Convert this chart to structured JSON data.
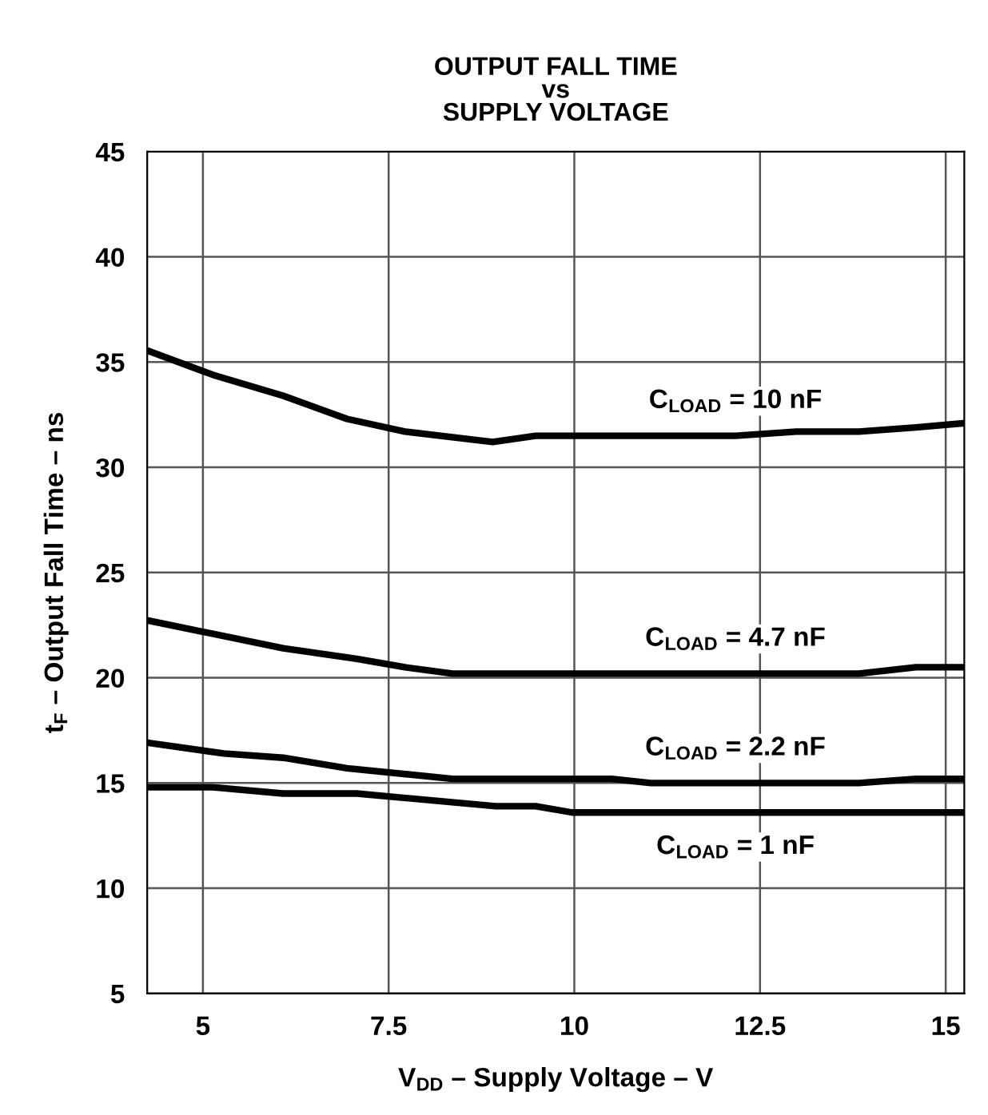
{
  "chart_data": {
    "type": "line",
    "title": "OUTPUT FALL TIME\nvs\nSUPPLY VOLTAGE",
    "xlabel": "V$_{DD}$ – Supply Voltage – V",
    "ylabel": "t$_{F}$ – Output Fall Time – ns",
    "xlim": [
      4.25,
      15.25
    ],
    "xticks": [
      5,
      7.5,
      10,
      12.5,
      15
    ],
    "ylim": [
      5,
      45
    ],
    "yticks": [
      5,
      10,
      15,
      20,
      25,
      30,
      35,
      40,
      45
    ],
    "grid": true,
    "legend": false,
    "marker": "none",
    "line_style": "solid",
    "series": [
      {
        "name": "C$_{LOAD}$ = 10 nF",
        "color": "#000000",
        "x": [
          4.29,
          5.13,
          6.08,
          6.94,
          7.72,
          8.9,
          9.48,
          12.17,
          12.99,
          13.83,
          14.6,
          15.25
        ],
        "values": [
          35.5,
          34.4,
          33.4,
          32.3,
          31.7,
          31.2,
          31.5,
          31.5,
          31.7,
          31.7,
          31.9,
          32.1
        ]
      },
      {
        "name": "C$_{LOAD}$ = 4.7 nF",
        "color": "#000000",
        "x": [
          4.29,
          6.08,
          7.07,
          7.72,
          8.36,
          13.83,
          14.6,
          15.25
        ],
        "values": [
          22.7,
          21.4,
          20.9,
          20.5,
          20.2,
          20.2,
          20.5,
          20.5
        ]
      },
      {
        "name": "C$_{LOAD}$ = 2.2 nF",
        "color": "#000000",
        "x": [
          4.29,
          5.28,
          6.08,
          6.94,
          8.36,
          10.5,
          11.03,
          13.83,
          14.6,
          15.25
        ],
        "values": [
          16.9,
          16.4,
          16.2,
          15.7,
          15.2,
          15.2,
          15.0,
          15.0,
          15.2,
          15.2
        ]
      },
      {
        "name": "C$_{LOAD}$ = 1 nF",
        "color": "#000000",
        "x": [
          4.29,
          5.13,
          6.08,
          7.07,
          8.94,
          9.48,
          9.97,
          15.25
        ],
        "values": [
          14.8,
          14.8,
          14.5,
          14.5,
          13.9,
          13.9,
          13.6,
          13.6
        ]
      }
    ]
  }
}
